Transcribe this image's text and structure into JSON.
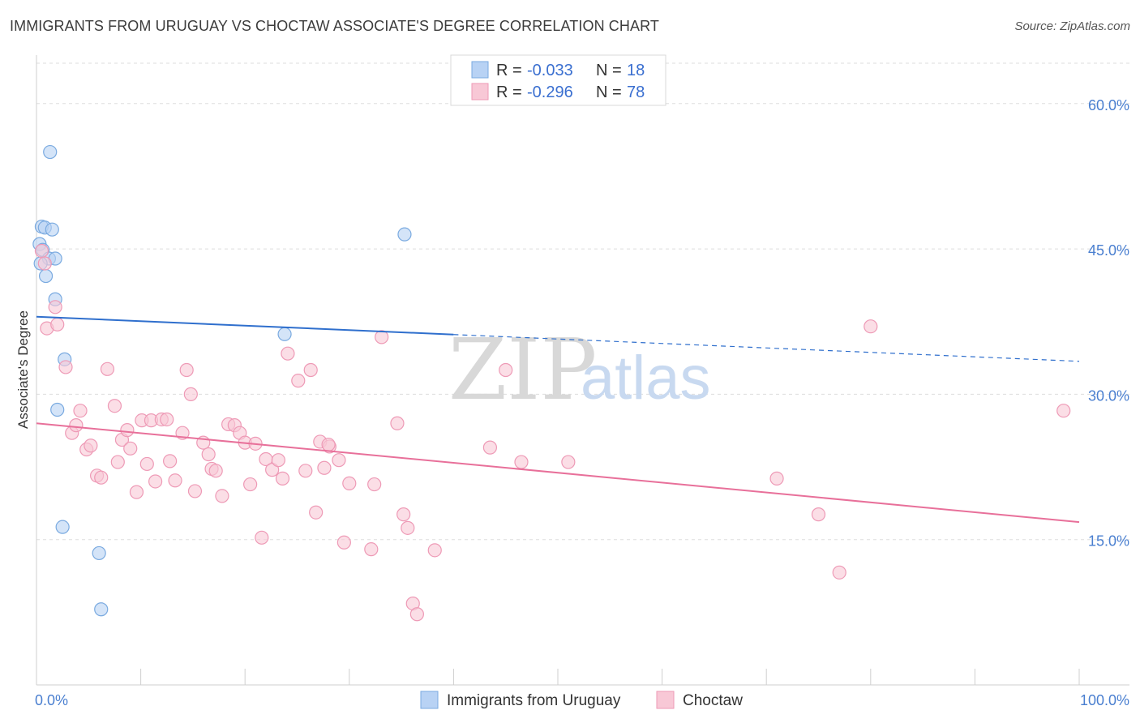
{
  "title": "IMMIGRANTS FROM URUGUAY VS CHOCTAW ASSOCIATE'S DEGREE CORRELATION CHART",
  "source": "Source: ZipAtlas.com",
  "watermark": {
    "zip": "ZIP",
    "atlas": "atlas"
  },
  "colors": {
    "blue_fill": "#b8d2f4",
    "blue_stroke": "#7aaae0",
    "blue_line": "#2f6fcd",
    "pink_fill": "#f8c8d6",
    "pink_stroke": "#ee9ab6",
    "pink_line": "#e8709a",
    "grid": "#dddddd"
  },
  "legend": {
    "rows": [
      {
        "r_label": "R = ",
        "r_value": "-0.033",
        "n_label": "N = ",
        "n_value": "18"
      },
      {
        "r_label": "R = ",
        "r_value": "-0.296",
        "n_label": "N = ",
        "n_value": "78"
      }
    ]
  },
  "chart_data": {
    "type": "scatter",
    "ylabel": "Associate's Degree",
    "xlim": [
      0,
      100
    ],
    "ylim": [
      0,
      65
    ],
    "x_tick_labels": [
      "0.0%",
      "100.0%"
    ],
    "y_ticks": [
      {
        "value": 15,
        "label": "15.0%"
      },
      {
        "value": 30,
        "label": "30.0%"
      },
      {
        "value": 45,
        "label": "45.0%"
      },
      {
        "value": 60,
        "label": "60.0%"
      }
    ],
    "grid": true,
    "legend_position": "top-center",
    "series": [
      {
        "name": "Immigrants from Uruguay",
        "color": "blue",
        "trend": {
          "x0": 0,
          "y0": 38.0,
          "x1": 100,
          "y1": 33.4,
          "solid_until_x": 40
        },
        "points": [
          [
            1.3,
            55.0
          ],
          [
            0.5,
            47.3
          ],
          [
            0.8,
            47.2
          ],
          [
            1.5,
            47.0
          ],
          [
            0.3,
            45.5
          ],
          [
            0.6,
            44.9
          ],
          [
            1.2,
            44.0
          ],
          [
            1.8,
            44.0
          ],
          [
            0.9,
            42.2
          ],
          [
            1.8,
            39.8
          ],
          [
            2.7,
            33.6
          ],
          [
            2.0,
            28.4
          ],
          [
            2.5,
            16.3
          ],
          [
            6.0,
            13.6
          ],
          [
            6.2,
            7.8
          ],
          [
            23.8,
            36.2
          ],
          [
            35.3,
            46.5
          ],
          [
            0.4,
            43.5
          ]
        ]
      },
      {
        "name": "Choctaw",
        "color": "pink",
        "trend": {
          "x0": 0,
          "y0": 27.0,
          "x1": 100,
          "y1": 16.8
        },
        "points": [
          [
            0.5,
            44.8
          ],
          [
            0.8,
            43.5
          ],
          [
            1.8,
            39.0
          ],
          [
            1.0,
            36.8
          ],
          [
            2.0,
            37.2
          ],
          [
            2.8,
            32.8
          ],
          [
            3.4,
            26.0
          ],
          [
            3.8,
            26.8
          ],
          [
            4.2,
            28.3
          ],
          [
            4.8,
            24.3
          ],
          [
            5.2,
            24.7
          ],
          [
            5.8,
            21.6
          ],
          [
            6.2,
            21.4
          ],
          [
            6.8,
            32.6
          ],
          [
            7.5,
            28.8
          ],
          [
            7.8,
            23.0
          ],
          [
            8.2,
            25.3
          ],
          [
            8.7,
            26.3
          ],
          [
            9.0,
            24.4
          ],
          [
            9.6,
            19.9
          ],
          [
            10.1,
            27.3
          ],
          [
            10.6,
            22.8
          ],
          [
            11.0,
            27.3
          ],
          [
            11.4,
            21.0
          ],
          [
            12.0,
            27.4
          ],
          [
            12.5,
            27.4
          ],
          [
            12.8,
            23.1
          ],
          [
            13.3,
            21.1
          ],
          [
            14.0,
            26.0
          ],
          [
            14.4,
            32.5
          ],
          [
            14.8,
            30.0
          ],
          [
            15.2,
            20.0
          ],
          [
            16.0,
            25.0
          ],
          [
            16.5,
            23.8
          ],
          [
            16.8,
            22.3
          ],
          [
            17.2,
            22.1
          ],
          [
            17.8,
            19.5
          ],
          [
            18.4,
            26.9
          ],
          [
            19.0,
            26.8
          ],
          [
            19.5,
            26.0
          ],
          [
            20.0,
            25.0
          ],
          [
            20.5,
            20.7
          ],
          [
            21.0,
            24.9
          ],
          [
            21.6,
            15.2
          ],
          [
            22.0,
            23.3
          ],
          [
            22.6,
            22.2
          ],
          [
            23.2,
            23.2
          ],
          [
            23.6,
            21.3
          ],
          [
            24.1,
            34.2
          ],
          [
            25.1,
            31.4
          ],
          [
            25.8,
            22.1
          ],
          [
            26.3,
            32.5
          ],
          [
            26.8,
            17.8
          ],
          [
            27.2,
            25.1
          ],
          [
            27.6,
            22.4
          ],
          [
            28.1,
            24.6
          ],
          [
            29.0,
            23.2
          ],
          [
            29.5,
            14.7
          ],
          [
            30.0,
            20.8
          ],
          [
            32.1,
            14.0
          ],
          [
            32.4,
            20.7
          ],
          [
            33.1,
            35.9
          ],
          [
            34.6,
            27.0
          ],
          [
            35.2,
            17.6
          ],
          [
            35.6,
            16.2
          ],
          [
            36.1,
            8.4
          ],
          [
            36.5,
            7.3
          ],
          [
            38.2,
            13.9
          ],
          [
            43.5,
            24.5
          ],
          [
            45.0,
            32.5
          ],
          [
            46.5,
            23.0
          ],
          [
            51.0,
            23.0
          ],
          [
            71.0,
            21.3
          ],
          [
            75.0,
            17.6
          ],
          [
            77.0,
            11.6
          ],
          [
            80.0,
            37.0
          ],
          [
            98.5,
            28.3
          ],
          [
            28.0,
            24.8
          ]
        ]
      }
    ]
  }
}
